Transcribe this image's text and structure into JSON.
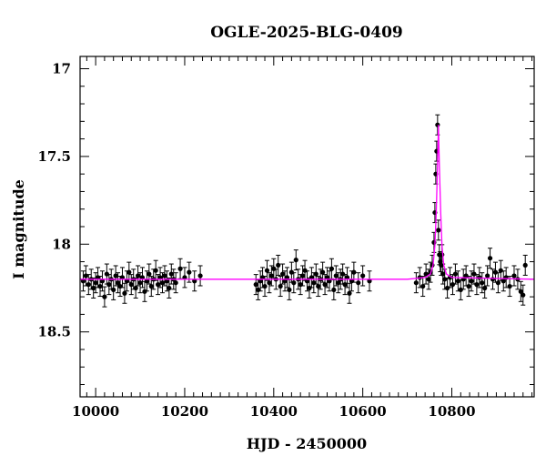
{
  "chart_data": {
    "type": "scatter",
    "title": "OGLE-2025-BLG-0409",
    "xlabel": "HJD - 2450000",
    "ylabel": "I magnitude",
    "xlim": [
      9965,
      10985
    ],
    "ylim": [
      18.87,
      16.93
    ],
    "y_inverted": true,
    "xticks": [
      10000,
      10200,
      10400,
      10600,
      10800
    ],
    "yticks": [
      17,
      17.5,
      18,
      18.5
    ],
    "grid": false,
    "colors": {
      "points": "#000000",
      "model": "#ff00ff",
      "frame": "#000000"
    },
    "model": {
      "name": "",
      "baseline": 18.2,
      "peak_time": 10770,
      "peak_magnitude": 17.32,
      "x": [
        9965,
        10700,
        10740,
        10752,
        10758,
        10762,
        10765,
        10768,
        10770,
        10772,
        10775,
        10778,
        10782,
        10788,
        10800,
        10985
      ],
      "y": [
        18.2,
        18.2,
        18.19,
        18.17,
        18.12,
        18.01,
        17.82,
        17.55,
        17.32,
        17.55,
        17.82,
        18.01,
        18.12,
        18.17,
        18.19,
        18.2
      ]
    },
    "series": [
      {
        "name": "",
        "x": [
          9972,
          9978,
          9984,
          9990,
          9995,
          10000,
          10005,
          10010,
          10015,
          10020,
          10025,
          10030,
          10035,
          10040,
          10045,
          10050,
          10055,
          10060,
          10065,
          10070,
          10075,
          10080,
          10085,
          10090,
          10095,
          10100,
          10105,
          10110,
          10115,
          10120,
          10125,
          10130,
          10135,
          10140,
          10145,
          10150,
          10155,
          10160,
          10165,
          10170,
          10175,
          10180,
          10190,
          10200,
          10210,
          10222,
          10235,
          10360,
          10365,
          10370,
          10375,
          10380,
          10385,
          10390,
          10395,
          10400,
          10405,
          10410,
          10415,
          10420,
          10425,
          10430,
          10435,
          10440,
          10445,
          10450,
          10455,
          10460,
          10465,
          10470,
          10475,
          10480,
          10485,
          10490,
          10495,
          10500,
          10505,
          10510,
          10515,
          10520,
          10525,
          10530,
          10535,
          10540,
          10545,
          10550,
          10555,
          10560,
          10565,
          10570,
          10575,
          10580,
          10590,
          10600,
          10615,
          10720,
          10728,
          10735,
          10742,
          10748,
          10752,
          10756,
          10760,
          10762,
          10764,
          10766,
          10768,
          10770,
          10772,
          10774,
          10776,
          10778,
          10780,
          10784,
          10790,
          10796,
          10802,
          10808,
          10814,
          10820,
          10826,
          10832,
          10838,
          10844,
          10850,
          10856,
          10862,
          10868,
          10874,
          10880,
          10886,
          10892,
          10898,
          10904,
          10910,
          10916,
          10922,
          10930,
          10940,
          10948,
          10955,
          10960,
          10965
        ],
        "y": [
          18.21,
          18.18,
          18.23,
          18.2,
          18.25,
          18.22,
          18.19,
          18.24,
          18.21,
          18.3,
          18.17,
          18.23,
          18.2,
          18.26,
          18.18,
          18.22,
          18.24,
          18.19,
          18.28,
          18.21,
          18.16,
          18.23,
          18.2,
          18.25,
          18.18,
          18.22,
          18.19,
          18.27,
          18.21,
          18.17,
          18.24,
          18.2,
          18.15,
          18.23,
          18.19,
          18.22,
          18.18,
          18.21,
          18.25,
          18.17,
          18.2,
          18.22,
          18.14,
          18.19,
          18.16,
          18.21,
          18.18,
          18.23,
          18.26,
          18.21,
          18.19,
          18.24,
          18.15,
          18.22,
          18.18,
          18.14,
          18.2,
          18.12,
          18.24,
          18.17,
          18.21,
          18.19,
          18.26,
          18.16,
          18.22,
          18.09,
          18.2,
          18.23,
          18.18,
          18.15,
          18.21,
          18.25,
          18.19,
          18.22,
          18.17,
          18.24,
          18.2,
          18.16,
          18.23,
          18.19,
          18.21,
          18.14,
          18.26,
          18.18,
          18.22,
          18.2,
          18.17,
          18.23,
          18.19,
          18.28,
          18.21,
          18.16,
          18.22,
          18.18,
          18.21,
          18.22,
          18.19,
          18.24,
          18.17,
          18.2,
          18.16,
          18.12,
          17.99,
          17.82,
          17.6,
          17.47,
          17.32,
          17.92,
          18.06,
          18.1,
          18.12,
          18.06,
          18.17,
          18.2,
          18.25,
          18.19,
          18.23,
          18.17,
          18.21,
          18.26,
          18.2,
          18.18,
          18.24,
          18.21,
          18.17,
          18.23,
          18.19,
          18.22,
          18.25,
          18.18,
          18.08,
          18.2,
          18.16,
          18.22,
          18.15,
          18.21,
          18.19,
          18.24,
          18.18,
          18.2,
          18.27,
          18.29,
          18.12
        ]
      }
    ]
  }
}
